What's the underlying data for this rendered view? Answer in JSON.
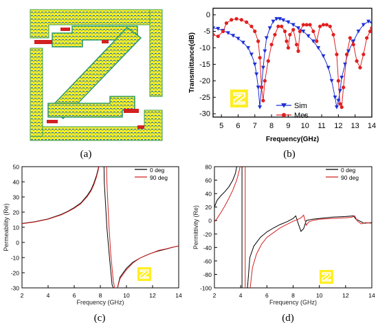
{
  "panel_labels": {
    "a": "(a)",
    "b": "(b)",
    "c": "(c)",
    "d": "(d)"
  },
  "colors": {
    "sim": "#1c2fd6",
    "mes": "#e02020",
    "black": "#000000",
    "red": "#d42020",
    "inset_yellow": "#ffee22",
    "field_yellow": "#f7ec2a"
  },
  "unit_cell_icon": "z-shaped-unit-cell-icon",
  "chart_data": [
    {
      "id": "b",
      "type": "line",
      "xlabel": "Frequency(GHz)",
      "ylabel": "Transmittance(dB)",
      "xlim": [
        4.5,
        14
      ],
      "ylim": [
        -31,
        2
      ],
      "xticks": [
        5,
        6,
        7,
        8,
        9,
        10,
        11,
        12,
        13,
        14
      ],
      "yticks": [
        0,
        -5,
        -10,
        -15,
        -20,
        -25,
        -30
      ],
      "legend": "bottom-right",
      "series": [
        {
          "name": "Sim",
          "color": "#1c2fd6",
          "marker": "triangle-down",
          "x": [
            4.5,
            4.8,
            5.1,
            5.4,
            5.7,
            6.0,
            6.3,
            6.6,
            6.8,
            7.0,
            7.1,
            7.2,
            7.3,
            7.4,
            7.5,
            7.6,
            7.7,
            7.9,
            8.1,
            8.3,
            8.5,
            8.7,
            9.0,
            9.3,
            9.6,
            9.9,
            10.2,
            10.5,
            10.8,
            11.1,
            11.4,
            11.6,
            11.8,
            11.9,
            12.0,
            12.1,
            12.2,
            12.4,
            12.6,
            12.9,
            13.2,
            13.5,
            13.8,
            14.0
          ],
          "y": [
            -4,
            -4.2,
            -4.8,
            -5.5,
            -6.3,
            -7.2,
            -8.4,
            -10,
            -12,
            -15,
            -18,
            -22,
            -28,
            -22,
            -16,
            -11,
            -7,
            -4,
            -2,
            -1.2,
            -1.2,
            -1.6,
            -2.2,
            -3,
            -4,
            -5,
            -6.4,
            -8,
            -10,
            -12.5,
            -16,
            -20,
            -25,
            -28,
            -26,
            -23,
            -19,
            -15,
            -11,
            -8,
            -5,
            -3,
            -2,
            -2.5
          ]
        },
        {
          "name": "Mes",
          "color": "#e02020",
          "marker": "circle",
          "x": [
            4.5,
            4.8,
            5.1,
            5.3,
            5.6,
            5.9,
            6.2,
            6.5,
            6.8,
            7.0,
            7.2,
            7.3,
            7.4,
            7.5,
            7.6,
            7.8,
            8.0,
            8.2,
            8.4,
            8.6,
            8.8,
            8.9,
            9.0,
            9.1,
            9.3,
            9.5,
            9.6,
            9.7,
            9.9,
            10.1,
            10.3,
            10.5,
            10.7,
            10.9,
            11.1,
            11.3,
            11.5,
            11.7,
            11.9,
            12.0,
            12.1,
            12.2,
            12.3,
            12.5,
            12.7,
            12.9,
            13.1,
            13.3,
            13.5,
            13.7,
            13.9,
            14.0
          ],
          "y": [
            -6,
            -6.5,
            -5,
            -2.5,
            -1.5,
            -1.2,
            -1.5,
            -2.2,
            -3.5,
            -5,
            -8,
            -13,
            -22,
            -26,
            -20,
            -14,
            -9,
            -6,
            -3.5,
            -3.5,
            -5,
            -8,
            -10,
            -6,
            -4.5,
            -9,
            -11,
            -5,
            -3,
            -3,
            -3,
            -5,
            -8,
            -3.5,
            -3,
            -3,
            -3.5,
            -6,
            -12,
            -20,
            -27,
            -28,
            -22,
            -12,
            -7,
            -9,
            -14,
            -16,
            -12,
            -7,
            -5,
            -4
          ]
        }
      ]
    },
    {
      "id": "c",
      "type": "line",
      "xlabel": "Frequency (GHz)",
      "ylabel": "Permeability (Re)",
      "xlim": [
        2,
        14
      ],
      "ylim": [
        -30,
        50
      ],
      "xticks": [
        2,
        4,
        6,
        8,
        10,
        12,
        14
      ],
      "yticks": [
        -30,
        -20,
        -10,
        0,
        10,
        20,
        30,
        40,
        50
      ],
      "legend": "top-right",
      "series": [
        {
          "name": "0 deg",
          "color": "#000000",
          "segments": [
            {
              "x": [
                2.0,
                3.0,
                4.0,
                5.0,
                5.5,
                6.0,
                6.5,
                7.0,
                7.3,
                7.5,
                7.7,
                7.85,
                7.95,
                8.05
              ],
              "y": [
                12.5,
                13.7,
                15.5,
                18.5,
                20.5,
                23,
                26,
                31,
                35,
                39,
                44,
                49,
                55,
                70
              ]
            },
            {
              "x": [
                8.22,
                8.3,
                8.5,
                8.7,
                8.9,
                9.2
              ],
              "y": [
                80,
                40,
                10,
                -10,
                -28,
                -34
              ]
            },
            {
              "x": [
                9.2,
                9.5,
                10.0,
                10.5,
                11.0,
                11.5,
                12.0,
                12.5,
                13.0,
                13.5,
                14.0
              ],
              "y": [
                -34,
                -23,
                -17,
                -13,
                -10.5,
                -8.5,
                -6.8,
                -5.5,
                -4.5,
                -3.3,
                -2.3
              ]
            }
          ]
        },
        {
          "name": "90 deg",
          "color": "#d42020",
          "segments": [
            {
              "x": [
                2.0,
                3.0,
                4.0,
                5.0,
                5.5,
                6.0,
                6.5,
                7.0,
                7.3,
                7.5,
                7.7,
                7.85,
                7.95,
                8.05
              ],
              "y": [
                12.3,
                13.5,
                15.3,
                18.2,
                20.2,
                22.6,
                25.5,
                30.3,
                34.2,
                38,
                43,
                48,
                53,
                66
              ]
            },
            {
              "x": [
                8.4,
                8.5,
                8.65,
                8.8,
                9.0,
                9.2
              ],
              "y": [
                80,
                40,
                12,
                -8,
                -26,
                -34
              ]
            },
            {
              "x": [
                9.2,
                9.5,
                10.0,
                10.5,
                11.0,
                11.5,
                12.0,
                12.5,
                13.0,
                13.5,
                14.0
              ],
              "y": [
                -34,
                -24,
                -18,
                -13.5,
                -10.5,
                -8.6,
                -6.8,
                -5.2,
                -4.3,
                -3.2,
                -2.3
              ]
            }
          ]
        }
      ]
    },
    {
      "id": "d",
      "type": "line",
      "xlabel": "Frequency (GHz)",
      "ylabel": "Permittivity (Re)",
      "xlim": [
        2,
        14
      ],
      "ylim": [
        -100,
        80
      ],
      "xticks": [
        2,
        4,
        6,
        8,
        10,
        12,
        14
      ],
      "yticks": [
        -100,
        -80,
        -60,
        -40,
        -20,
        0,
        20,
        40,
        60,
        80
      ],
      "legend": "top-right",
      "series": [
        {
          "name": "0 deg",
          "color": "#000000",
          "segments": [
            {
              "x": [
                2.0,
                2.2,
                2.5,
                2.8,
                3.1,
                3.4,
                3.6,
                3.75
              ],
              "y": [
                20,
                30,
                37,
                43,
                50,
                60,
                70,
                85
              ]
            },
            {
              "x": [
                4.1,
                4.1
              ],
              "y": [
                85,
                -105
              ]
            },
            {
              "x": [
                4.5,
                4.7,
                5.0,
                5.5,
                6.0,
                6.5,
                7.0,
                7.5,
                8.0,
                8.2,
                8.4,
                8.6,
                8.8,
                9.0,
                9.5,
                10.0,
                11.0,
                12.0,
                12.6,
                12.8,
                13.0,
                13.4,
                14.0
              ],
              "y": [
                -105,
                -55,
                -38,
                -25,
                -17,
                -11,
                -6,
                -2,
                3,
                7,
                -5,
                -16,
                -12,
                0,
                2,
                3,
                5,
                6,
                7,
                2,
                0,
                -4,
                -3
              ]
            }
          ]
        },
        {
          "name": "90 deg",
          "color": "#d42020",
          "segments": [
            {
              "x": [
                2.0,
                2.2,
                2.5,
                2.8,
                3.1,
                3.4,
                3.7,
                3.9,
                4.0
              ],
              "y": [
                -2,
                3,
                12,
                22,
                33,
                45,
                60,
                75,
                85
              ]
            },
            {
              "x": [
                4.35,
                4.35
              ],
              "y": [
                85,
                -105
              ]
            },
            {
              "x": [
                4.7,
                4.9,
                5.2,
                5.6,
                6.0,
                6.5,
                7.0,
                7.5,
                8.0,
                8.3,
                8.6,
                8.8,
                9.0,
                9.2,
                9.5,
                10.0,
                11.0,
                12.0,
                12.5,
                12.7,
                12.9,
                13.2,
                13.5,
                14.0
              ],
              "y": [
                -105,
                -70,
                -50,
                -35,
                -25,
                -18,
                -11,
                -6,
                -1,
                1,
                4,
                8,
                -7,
                -2,
                0,
                2,
                3,
                4,
                5,
                7,
                -1,
                -5,
                -3,
                -4
              ]
            }
          ]
        }
      ]
    }
  ]
}
